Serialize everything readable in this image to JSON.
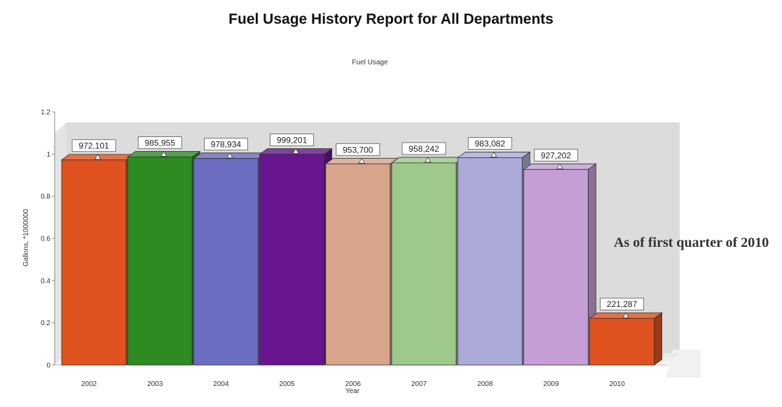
{
  "chart_data": {
    "type": "bar",
    "title": "Fuel Usage History Report for All Departments",
    "subtitle": "Fuel Usage",
    "xlabel": "Year",
    "ylabel": "Gallons, *1000000",
    "categories": [
      "2002",
      "2003",
      "2004",
      "2005",
      "2006",
      "2007",
      "2008",
      "2009",
      "2010"
    ],
    "series": [
      {
        "values": [
          972101,
          985955,
          978934,
          999201,
          953700,
          958242,
          983082,
          927202,
          221287
        ]
      }
    ],
    "data_labels": [
      "972,101",
      "985,955",
      "978,934",
      "999,201",
      "953,700",
      "958,242",
      "983,082",
      "927,202",
      "221,287"
    ],
    "ylim": [
      0,
      1.2
    ],
    "yticks": [
      "0",
      "0.2",
      "0.4",
      "0.6",
      "0.8",
      "1",
      "1.2"
    ],
    "bar_colors": [
      "#e0521f",
      "#2e8b22",
      "#6a6dc0",
      "#67168f",
      "#d8a58b",
      "#9ec98a",
      "#acaad8",
      "#c59ed6",
      "#e0521f"
    ],
    "wall_color": "#dcdcdc",
    "grid": false,
    "legend": "none",
    "annotation": "As of first quarter of 2010"
  }
}
